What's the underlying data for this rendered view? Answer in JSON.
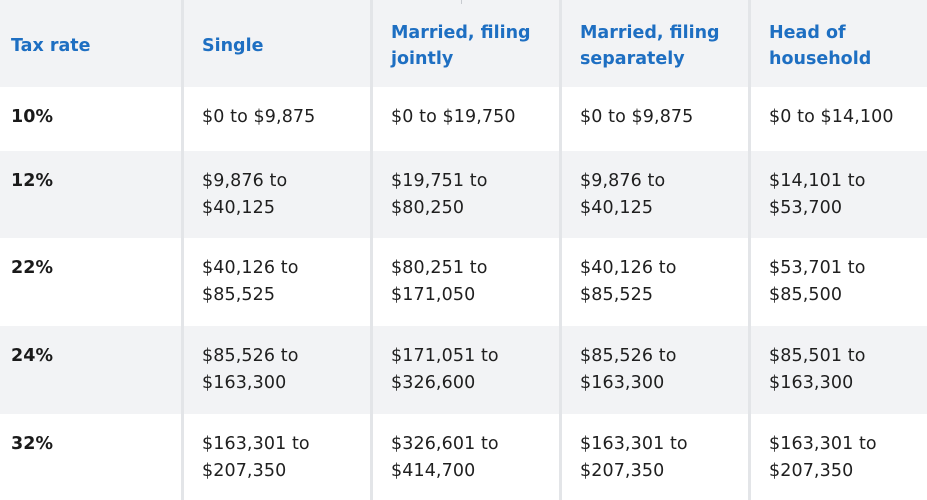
{
  "headers": {
    "tax_rate": "Tax rate",
    "single": "Single",
    "mfj_line1": "Married, filing",
    "mfj_line2": "jointly",
    "mfs_line1": "Married, filing",
    "mfs_line2": "separately",
    "hoh_line1": "Head of",
    "hoh_line2": "household"
  },
  "rows": [
    {
      "rate": "10%",
      "single": [
        "$0 to $9,875"
      ],
      "mfj": [
        "$0 to $19,750"
      ],
      "mfs": [
        "$0 to $9,875"
      ],
      "hoh": [
        "$0 to $14,100"
      ]
    },
    {
      "rate": "12%",
      "single": [
        "$9,876 to",
        "$40,125"
      ],
      "mfj": [
        "$19,751 to",
        "$80,250"
      ],
      "mfs": [
        "$9,876 to",
        "$40,125"
      ],
      "hoh": [
        "$14,101 to",
        "$53,700"
      ]
    },
    {
      "rate": "22%",
      "single": [
        "$40,126 to",
        "$85,525"
      ],
      "mfj": [
        "$80,251 to",
        "$171,050"
      ],
      "mfs": [
        "$40,126 to",
        "$85,525"
      ],
      "hoh": [
        "$53,701 to",
        "$85,500"
      ]
    },
    {
      "rate": "24%",
      "single": [
        "$85,526 to",
        "$163,300"
      ],
      "mfj": [
        "$171,051 to",
        "$326,600"
      ],
      "mfs": [
        "$85,526 to",
        "$163,300"
      ],
      "hoh": [
        "$85,501 to",
        "$163,300"
      ]
    },
    {
      "rate": "32%",
      "single": [
        "$163,301 to",
        "$207,350"
      ],
      "mfj": [
        "$326,601 to",
        "$414,700"
      ],
      "mfs": [
        "$163,301 to",
        "$207,350"
      ],
      "hoh": [
        "$163,301 to",
        "$207,350"
      ]
    }
  ],
  "colors": {
    "header_text": "#1e6fc2",
    "stripe": "#f2f3f5",
    "divider": "#e3e5e8"
  }
}
